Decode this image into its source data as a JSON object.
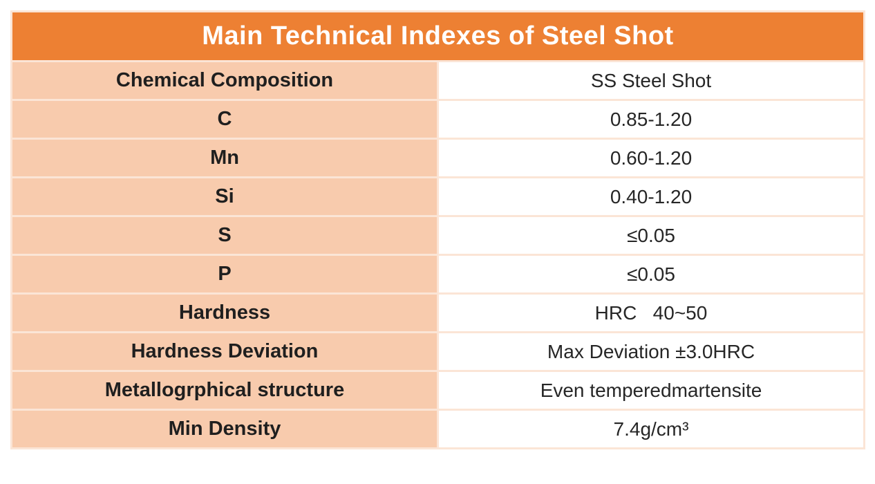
{
  "title": "Main Technical Indexes of Steel Shot",
  "rows": [
    {
      "label": "Chemical Composition",
      "value": "SS Steel Shot"
    },
    {
      "label": "C",
      "value": "0.85-1.20"
    },
    {
      "label": "Mn",
      "value": "0.60-1.20"
    },
    {
      "label": "Si",
      "value": "0.40-1.20"
    },
    {
      "label": "S",
      "value": "≤0.05"
    },
    {
      "label": "P",
      "value": "≤0.05"
    },
    {
      "label": "Hardness",
      "value": "HRC   40~50"
    },
    {
      "label": "Hardness Deviation",
      "value": "Max Deviation ±3.0HRC"
    },
    {
      "label": "Metallogrphical structure",
      "value": "Even temperedmartensite"
    },
    {
      "label": "Min Density",
      "value": "7.4g/cm³"
    }
  ],
  "colors": {
    "header_bg": "#ED8033",
    "label_bg": "#F8CBAD",
    "value_bg": "#FFFFFF",
    "border": "#FBE5D6",
    "title_text": "#FFFFFF",
    "label_text": "#1F1F1F",
    "value_text": "#262626"
  }
}
